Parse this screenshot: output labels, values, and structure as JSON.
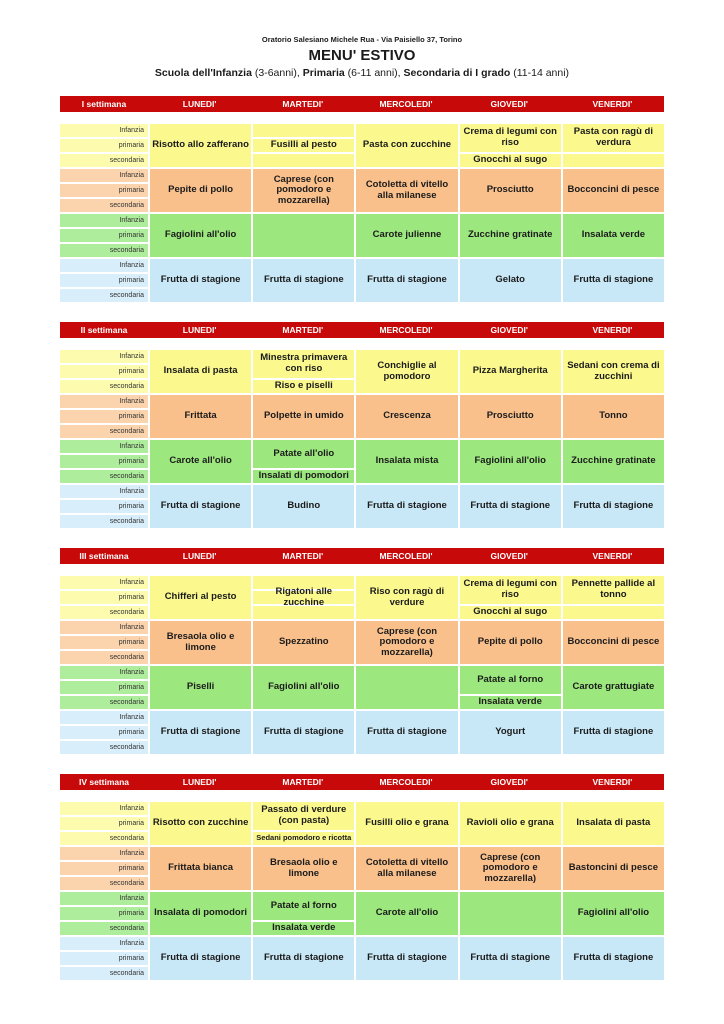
{
  "header": {
    "address": "Oratorio Salesiano Michele Rua - Via Paisiello 37, Torino",
    "title": "MENU' ESTIVO",
    "subtitle_parts": [
      {
        "text": "Scuola dell'Infanzia",
        "bold": true
      },
      {
        "text": " (3-6anni), ",
        "bold": false
      },
      {
        "text": "Primaria",
        "bold": true
      },
      {
        "text": " (6-11 anni), ",
        "bold": false
      },
      {
        "text": "Secondaria di I grado",
        "bold": true
      },
      {
        "text": " (11-14 anni)",
        "bold": false
      }
    ]
  },
  "days": [
    "LUNEDI'",
    "MARTEDI'",
    "MERCOLEDI'",
    "GIOVEDI'",
    "VENERDI'"
  ],
  "row_labels": [
    "Infanzia",
    "primaria",
    "secondaria"
  ],
  "colors": {
    "header_red": "#c80909",
    "primo_yellow": "#fbf98e",
    "secondo_orange": "#f9c08c",
    "contorno_green": "#9ce87e",
    "frutta_blue": "#c9e8f7"
  },
  "weeks": [
    {
      "name": "I settimana",
      "bands": [
        {
          "color": "yellow",
          "cells": [
            [
              {
                "span": 3,
                "text": "Risotto allo zafferano"
              }
            ],
            [
              {
                "span": 1,
                "text": ""
              },
              {
                "span": 1,
                "text": "Fusilli al pesto"
              },
              {
                "span": 1,
                "text": ""
              }
            ],
            [
              {
                "span": 3,
                "text": "Pasta con zucchine"
              }
            ],
            [
              {
                "span": 2,
                "text": "Crema di legumi con riso"
              },
              {
                "span": 1,
                "text": "Gnocchi al sugo"
              }
            ],
            [
              {
                "span": 2,
                "text": "Pasta con ragù di verdura"
              },
              {
                "span": 1,
                "text": ""
              }
            ]
          ]
        },
        {
          "color": "orange",
          "cells": [
            [
              {
                "span": 3,
                "text": "Pepite di pollo"
              }
            ],
            [
              {
                "span": 3,
                "text": "Caprese (con pomodoro e mozzarella)"
              }
            ],
            [
              {
                "span": 3,
                "text": "Cotoletta di vitello alla milanese"
              }
            ],
            [
              {
                "span": 3,
                "text": "Prosciutto"
              }
            ],
            [
              {
                "span": 3,
                "text": "Bocconcini di pesce"
              }
            ]
          ]
        },
        {
          "color": "green",
          "cells": [
            [
              {
                "span": 3,
                "text": "Fagiolini all'olio"
              }
            ],
            [
              {
                "span": 3,
                "text": ""
              }
            ],
            [
              {
                "span": 3,
                "text": "Carote julienne"
              }
            ],
            [
              {
                "span": 3,
                "text": "Zucchine gratinate"
              }
            ],
            [
              {
                "span": 3,
                "text": "Insalata verde"
              }
            ]
          ]
        },
        {
          "color": "blue",
          "cells": [
            [
              {
                "span": 3,
                "text": "Frutta di stagione"
              }
            ],
            [
              {
                "span": 3,
                "text": "Frutta di stagione"
              }
            ],
            [
              {
                "span": 3,
                "text": "Frutta di stagione"
              }
            ],
            [
              {
                "span": 3,
                "text": "Gelato"
              }
            ],
            [
              {
                "span": 3,
                "text": "Frutta di stagione"
              }
            ]
          ]
        }
      ]
    },
    {
      "name": "II settimana",
      "bands": [
        {
          "color": "yellow",
          "cells": [
            [
              {
                "span": 3,
                "text": "Insalata di pasta"
              }
            ],
            [
              {
                "span": 2,
                "text": "Minestra primavera con riso"
              },
              {
                "span": 1,
                "text": "Riso e piselli"
              }
            ],
            [
              {
                "span": 3,
                "text": "Conchiglie al pomodoro"
              }
            ],
            [
              {
                "span": 3,
                "text": "Pizza Margherita"
              }
            ],
            [
              {
                "span": 3,
                "text": "Sedani con crema di zucchini"
              }
            ]
          ]
        },
        {
          "color": "orange",
          "cells": [
            [
              {
                "span": 3,
                "text": "Frittata"
              }
            ],
            [
              {
                "span": 3,
                "text": "Polpette in umido"
              }
            ],
            [
              {
                "span": 3,
                "text": "Crescenza"
              }
            ],
            [
              {
                "span": 3,
                "text": "Prosciutto"
              }
            ],
            [
              {
                "span": 3,
                "text": "Tonno"
              }
            ]
          ]
        },
        {
          "color": "green",
          "cells": [
            [
              {
                "span": 3,
                "text": "Carote all'olio"
              }
            ],
            [
              {
                "span": 2,
                "text": "Patate all'olio"
              },
              {
                "span": 1,
                "text": "Insalati di pomodori"
              }
            ],
            [
              {
                "span": 3,
                "text": "Insalata mista"
              }
            ],
            [
              {
                "span": 3,
                "text": "Fagiolini all'olio"
              }
            ],
            [
              {
                "span": 3,
                "text": "Zucchine gratinate"
              }
            ]
          ]
        },
        {
          "color": "blue",
          "cells": [
            [
              {
                "span": 3,
                "text": "Frutta di stagione"
              }
            ],
            [
              {
                "span": 3,
                "text": "Budino"
              }
            ],
            [
              {
                "span": 3,
                "text": "Frutta di stagione"
              }
            ],
            [
              {
                "span": 3,
                "text": "Frutta di stagione"
              }
            ],
            [
              {
                "span": 3,
                "text": "Frutta di stagione"
              }
            ]
          ]
        }
      ]
    },
    {
      "name": "III settimana",
      "bands": [
        {
          "color": "yellow",
          "cells": [
            [
              {
                "span": 3,
                "text": "Chifferi al pesto"
              }
            ],
            [
              {
                "span": 1,
                "text": ""
              },
              {
                "span": 1,
                "text": "Rigatoni alle zucchine"
              },
              {
                "span": 1,
                "text": ""
              }
            ],
            [
              {
                "span": 3,
                "text": "Riso con ragù di verdure"
              }
            ],
            [
              {
                "span": 2,
                "text": "Crema di legumi con riso"
              },
              {
                "span": 1,
                "text": "Gnocchi al sugo"
              }
            ],
            [
              {
                "span": 2,
                "text": "Pennette pallide al tonno"
              },
              {
                "span": 1,
                "text": ""
              }
            ]
          ]
        },
        {
          "color": "orange",
          "cells": [
            [
              {
                "span": 3,
                "text": "Bresaola olio e limone"
              }
            ],
            [
              {
                "span": 3,
                "text": "Spezzatino"
              }
            ],
            [
              {
                "span": 3,
                "text": "Caprese (con pomodoro e mozzarella)"
              }
            ],
            [
              {
                "span": 3,
                "text": "Pepite di pollo"
              }
            ],
            [
              {
                "span": 3,
                "text": "Bocconcini di pesce"
              }
            ]
          ]
        },
        {
          "color": "green",
          "cells": [
            [
              {
                "span": 3,
                "text": "Piselli"
              }
            ],
            [
              {
                "span": 3,
                "text": "Fagiolini all'olio"
              }
            ],
            [
              {
                "span": 3,
                "text": ""
              }
            ],
            [
              {
                "span": 2,
                "text": "Patate al forno"
              },
              {
                "span": 1,
                "text": "Insalata verde"
              }
            ],
            [
              {
                "span": 3,
                "text": "Carote grattugiate"
              }
            ]
          ]
        },
        {
          "color": "blue",
          "cells": [
            [
              {
                "span": 3,
                "text": "Frutta di stagione"
              }
            ],
            [
              {
                "span": 3,
                "text": "Frutta di stagione"
              }
            ],
            [
              {
                "span": 3,
                "text": "Frutta di stagione"
              }
            ],
            [
              {
                "span": 3,
                "text": "Yogurt"
              }
            ],
            [
              {
                "span": 3,
                "text": "Frutta di stagione"
              }
            ]
          ]
        }
      ]
    },
    {
      "name": "IV settimana",
      "bands": [
        {
          "color": "yellow",
          "cells": [
            [
              {
                "span": 3,
                "text": "Risotto con zucchine"
              }
            ],
            [
              {
                "span": 2,
                "text": "Passato di verdure (con pasta)"
              },
              {
                "span": 1,
                "text": "Sedani pomodoro e ricotta",
                "small": true
              }
            ],
            [
              {
                "span": 3,
                "text": "Fusilli olio e grana"
              }
            ],
            [
              {
                "span": 3,
                "text": "Ravioli olio e grana"
              }
            ],
            [
              {
                "span": 3,
                "text": "Insalata di pasta"
              }
            ]
          ]
        },
        {
          "color": "orange",
          "cells": [
            [
              {
                "span": 3,
                "text": "Frittata bianca"
              }
            ],
            [
              {
                "span": 3,
                "text": "Bresaola olio e limone"
              }
            ],
            [
              {
                "span": 3,
                "text": "Cotoletta di vitello alla milanese"
              }
            ],
            [
              {
                "span": 3,
                "text": "Caprese (con pomodoro e mozzarella)"
              }
            ],
            [
              {
                "span": 3,
                "text": "Bastoncini di pesce"
              }
            ]
          ]
        },
        {
          "color": "green",
          "cells": [
            [
              {
                "span": 3,
                "text": "Insalata di pomodori"
              }
            ],
            [
              {
                "span": 2,
                "text": "Patate al forno"
              },
              {
                "span": 1,
                "text": "Insalata verde"
              }
            ],
            [
              {
                "span": 3,
                "text": "Carote all'olio"
              }
            ],
            [
              {
                "span": 3,
                "text": ""
              }
            ],
            [
              {
                "span": 3,
                "text": "Fagiolini all'olio"
              }
            ]
          ]
        },
        {
          "color": "blue",
          "cells": [
            [
              {
                "span": 3,
                "text": "Frutta di stagione"
              }
            ],
            [
              {
                "span": 3,
                "text": "Frutta di stagione"
              }
            ],
            [
              {
                "span": 3,
                "text": "Frutta di stagione"
              }
            ],
            [
              {
                "span": 3,
                "text": "Frutta di stagione"
              }
            ],
            [
              {
                "span": 3,
                "text": "Frutta di stagione"
              }
            ]
          ]
        }
      ]
    }
  ]
}
